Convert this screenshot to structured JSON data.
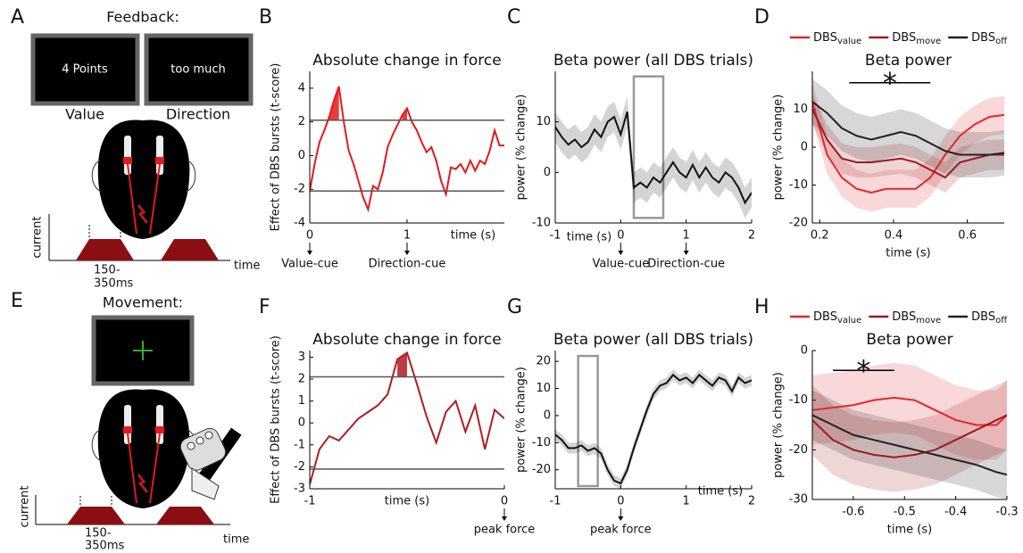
{
  "diagrams": [
    {
      "panel": "A",
      "title": "Feedback:",
      "screens": [
        "4 Points",
        "too much"
      ],
      "screen_captions": [
        "Value",
        "Direction"
      ],
      "axis_labels": [
        "current",
        "time"
      ],
      "duration": [
        "150-",
        "350ms"
      ]
    },
    {
      "panel": "E",
      "title": "Movement:",
      "axis_labels": [
        "current",
        "time"
      ],
      "duration": [
        "150-",
        "350ms"
      ]
    }
  ],
  "chart_data": [
    {
      "type": "line",
      "panel": "B",
      "title": "Absolute change in force",
      "ylabel": "Effect of DBS bursts (t-score)",
      "xlabel": "time (s)",
      "xlim": [
        0,
        2
      ],
      "xticks": [
        0,
        1
      ],
      "ylim": [
        -4,
        5
      ],
      "yticks": [
        -4,
        -2,
        0,
        2,
        4
      ],
      "hlines": [
        2.1,
        -2.1
      ],
      "x": [
        0,
        0.05,
        0.1,
        0.15,
        0.2,
        0.25,
        0.3,
        0.35,
        0.4,
        0.45,
        0.5,
        0.55,
        0.6,
        0.65,
        0.7,
        0.75,
        0.8,
        0.85,
        0.9,
        0.95,
        1,
        1.05,
        1.1,
        1.15,
        1.2,
        1.25,
        1.3,
        1.35,
        1.4,
        1.45,
        1.5,
        1.55,
        1.6,
        1.65,
        1.7,
        1.75,
        1.8,
        1.85,
        1.9,
        1.95,
        2
      ],
      "series": [
        {
          "color": "#e41a1c",
          "values": [
            -2.1,
            -0.5,
            0.8,
            1.5,
            2.3,
            3.3,
            4.1,
            2.0,
            0.3,
            -0.5,
            -1.5,
            -2.5,
            -3.2,
            -1.8,
            -2.0,
            -1.0,
            0.5,
            1.2,
            1.8,
            2.4,
            2.8,
            2.0,
            1.5,
            0.8,
            0.2,
            0.5,
            -0.3,
            -1.5,
            -2.3,
            -0.7,
            -0.8,
            -0.5,
            -1.0,
            -0.3,
            -0.9,
            -0.3,
            -0.5,
            0.3,
            1.5,
            0.6,
            0.6
          ]
        }
      ],
      "annotations": [
        {
          "label": "Value-cue",
          "x": 0
        },
        {
          "label": "Direction-cue",
          "x": 1
        }
      ]
    },
    {
      "type": "line",
      "panel": "C",
      "title": "Beta power (all DBS trials)",
      "ylabel": "power (% change)",
      "xlabel": "time (s)",
      "xlim": [
        -1,
        2
      ],
      "xticks": [
        -1,
        0,
        1,
        2
      ],
      "ylim": [
        -10,
        20
      ],
      "yticks": [
        -10,
        0,
        10
      ],
      "window": {
        "x": [
          0.2,
          0.65
        ],
        "y": [
          -9,
          19
        ]
      },
      "x": [
        -1,
        -0.9,
        -0.8,
        -0.7,
        -0.6,
        -0.5,
        -0.4,
        -0.3,
        -0.2,
        -0.1,
        0,
        0.1,
        0.2,
        0.3,
        0.4,
        0.5,
        0.6,
        0.7,
        0.8,
        0.9,
        1,
        1.1,
        1.2,
        1.3,
        1.4,
        1.5,
        1.6,
        1.7,
        1.8,
        1.9,
        2
      ],
      "series": [
        {
          "color": "#111111",
          "values": [
            9,
            7,
            5.5,
            6.5,
            5,
            6,
            8.5,
            7,
            10,
            11,
            7.5,
            12,
            -3,
            -2,
            -3,
            -1,
            -2,
            0,
            2,
            0,
            -1,
            1.5,
            -1,
            1,
            -1,
            -2,
            0,
            -1,
            -3,
            -6,
            -4
          ],
          "lower": [
            6,
            4,
            2.5,
            3.5,
            2,
            3,
            5.5,
            4,
            7,
            8,
            4.5,
            9,
            -6,
            -5,
            -6,
            -4,
            -5,
            -3,
            -1,
            -3,
            -4,
            -1.5,
            -4,
            -2,
            -4,
            -5,
            -3,
            -4,
            -6,
            -9,
            -7
          ],
          "upper": [
            12,
            10,
            8.5,
            9.5,
            8,
            9,
            11.5,
            10,
            13,
            14,
            10.5,
            15,
            0,
            1,
            0,
            2,
            1,
            3,
            5,
            3,
            2,
            4.5,
            2,
            4,
            2,
            1,
            3,
            2,
            0,
            -3,
            -1
          ]
        }
      ],
      "annotations": [
        {
          "label": "Value-cue",
          "x": 0
        },
        {
          "label": "Direction-cue",
          "x": 1
        }
      ]
    },
    {
      "type": "line",
      "panel": "D",
      "title": "Beta power",
      "ylabel": "power (% change)",
      "xlabel": "time (s)",
      "xlim": [
        0.18,
        0.7
      ],
      "xticks": [
        0.2,
        0.4,
        0.6
      ],
      "ylim": [
        -20,
        20
      ],
      "yticks": [
        -20,
        -10,
        0,
        10
      ],
      "significance": {
        "label": "*",
        "x": [
          0.28,
          0.5
        ],
        "y": 17
      },
      "x": [
        0.18,
        0.22,
        0.26,
        0.3,
        0.34,
        0.38,
        0.42,
        0.46,
        0.5,
        0.54,
        0.58,
        0.62,
        0.66,
        0.7
      ],
      "series": [
        {
          "name": "DBS",
          "subscript": "value",
          "color": "#e0282e",
          "values": [
            12,
            -2,
            -8,
            -11,
            -12,
            -11,
            -11,
            -11,
            -8,
            -2,
            3,
            6,
            8,
            8.5
          ],
          "lower": [
            7,
            -7,
            -13,
            -16,
            -17,
            -16,
            -16,
            -16,
            -13,
            -7,
            -2,
            1,
            3,
            3.5
          ],
          "upper": [
            17,
            3,
            -3,
            -6,
            -7,
            -6,
            -6,
            -6,
            -3,
            3,
            8,
            11,
            13,
            13.5
          ]
        },
        {
          "name": "DBS",
          "subscript": "move",
          "color": "#9e1b1f",
          "values": [
            10,
            2,
            -3,
            -4,
            -4,
            -3.5,
            -3,
            -4,
            -6,
            -8,
            -4,
            -3,
            -2,
            -2
          ],
          "lower": [
            6,
            -2,
            -7,
            -8,
            -8,
            -7.5,
            -7,
            -8,
            -10,
            -12,
            -8,
            -7,
            -6,
            -6
          ],
          "upper": [
            14,
            6,
            1,
            0,
            0,
            0.5,
            1,
            0,
            -2,
            -4,
            0,
            1,
            2,
            2
          ]
        },
        {
          "name": "DBS",
          "subscript": "off",
          "color": "#222222",
          "values": [
            12,
            9,
            5,
            3,
            2,
            3,
            4,
            3,
            1,
            -1,
            -2,
            -2,
            -2,
            -1.5
          ],
          "lower": [
            6,
            3,
            -1,
            -3,
            -4,
            -3,
            -2,
            -3,
            -5,
            -7,
            -8,
            -8,
            -8,
            -7.5
          ],
          "upper": [
            18,
            15,
            11,
            9,
            8,
            9,
            10,
            9,
            7,
            5,
            4,
            4,
            4,
            4.5
          ]
        }
      ]
    },
    {
      "type": "line",
      "panel": "F",
      "title": "Absolute change in force",
      "ylabel": "Effect of DBS bursts (t-score)",
      "xlabel": "time (s)",
      "xlim": [
        -1,
        0
      ],
      "xticks": [
        -1,
        0
      ],
      "ylim": [
        -3,
        3.3
      ],
      "yticks": [
        -3,
        -2,
        -1,
        0,
        1,
        2,
        3
      ],
      "hlines": [
        2.1,
        -2.1
      ],
      "x": [
        -1,
        -0.95,
        -0.9,
        -0.85,
        -0.8,
        -0.75,
        -0.7,
        -0.65,
        -0.6,
        -0.55,
        -0.5,
        -0.45,
        -0.4,
        -0.35,
        -0.3,
        -0.25,
        -0.2,
        -0.15,
        -0.1,
        -0.05,
        0
      ],
      "series": [
        {
          "color": "#b01c22",
          "values": [
            -2.8,
            -1.2,
            -0.6,
            -0.8,
            -0.3,
            0.2,
            0.5,
            0.8,
            1.3,
            2.9,
            3.2,
            1.8,
            0.3,
            -0.9,
            0.5,
            1.0,
            -0.4,
            0.8,
            -1.2,
            0.6,
            0.2
          ]
        }
      ],
      "annotations": [
        {
          "label": "peak force",
          "x": 0
        }
      ]
    },
    {
      "type": "line",
      "panel": "G",
      "title": "Beta power (all DBS trials)",
      "ylabel": "power (% change)",
      "xlabel": "time (s)",
      "xlim": [
        -1,
        2
      ],
      "xticks": [
        -1,
        0,
        1,
        2
      ],
      "ylim": [
        -27,
        24
      ],
      "yticks": [
        -20,
        -10,
        0,
        10,
        20
      ],
      "window": {
        "x": [
          -0.65,
          -0.35
        ],
        "y": [
          -26,
          22
        ]
      },
      "x": [
        -1,
        -0.9,
        -0.8,
        -0.7,
        -0.6,
        -0.5,
        -0.4,
        -0.3,
        -0.2,
        -0.1,
        0,
        0.1,
        0.2,
        0.3,
        0.4,
        0.5,
        0.6,
        0.7,
        0.8,
        0.9,
        1,
        1.1,
        1.2,
        1.3,
        1.4,
        1.5,
        1.6,
        1.7,
        1.8,
        1.9,
        2
      ],
      "series": [
        {
          "color": "#111111",
          "values": [
            -7,
            -9,
            -12,
            -12,
            -11,
            -13,
            -12,
            -14,
            -20,
            -24,
            -25,
            -20,
            -12,
            -5,
            2,
            8,
            11,
            12,
            15,
            13,
            14,
            12,
            15,
            13,
            11,
            14,
            13,
            9,
            14,
            12,
            13
          ],
          "lower": [
            -9,
            -11,
            -14,
            -14,
            -13,
            -15,
            -14,
            -16,
            -22,
            -26,
            -27,
            -22,
            -14,
            -7,
            0,
            6,
            9,
            10,
            13,
            11,
            12,
            10,
            13,
            11,
            9,
            12,
            11,
            7,
            12,
            10,
            11
          ],
          "upper": [
            -5,
            -7,
            -10,
            -10,
            -9,
            -11,
            -10,
            -12,
            -18,
            -22,
            -23,
            -18,
            -10,
            -3,
            4,
            10,
            13,
            14,
            17,
            15,
            16,
            14,
            17,
            15,
            13,
            16,
            15,
            11,
            16,
            14,
            15
          ]
        }
      ],
      "annotations": [
        {
          "label": "peak force",
          "x": 0
        }
      ]
    },
    {
      "type": "line",
      "panel": "H",
      "title": "Beta power",
      "ylabel": "power (% change)",
      "xlabel": "time (s)",
      "xlim": [
        -0.68,
        -0.3
      ],
      "xticks": [
        -0.6,
        -0.5,
        -0.4,
        -0.3
      ],
      "ylim": [
        -30,
        0
      ],
      "yticks": [
        -30,
        -20,
        -10,
        0
      ],
      "significance": {
        "label": "*",
        "x": [
          -0.64,
          -0.52
        ],
        "y": -4
      },
      "x": [
        -0.68,
        -0.64,
        -0.6,
        -0.56,
        -0.52,
        -0.48,
        -0.44,
        -0.4,
        -0.36,
        -0.32,
        -0.3
      ],
      "series": [
        {
          "name": "DBS",
          "subscript": "value",
          "color": "#e0282e",
          "values": [
            -12,
            -11.5,
            -11,
            -10,
            -9.5,
            -10,
            -12,
            -14,
            -15,
            -15,
            -13
          ],
          "lower": [
            -19,
            -18.5,
            -18,
            -17,
            -16.5,
            -17,
            -19,
            -21,
            -22,
            -22,
            -20
          ],
          "upper": [
            -5,
            -4.5,
            -4,
            -3,
            -2.5,
            -3,
            -5,
            -7,
            -8,
            -8,
            -6
          ]
        },
        {
          "name": "DBS",
          "subscript": "move",
          "color": "#9e1b1f",
          "values": [
            -14,
            -18,
            -20,
            -21,
            -21.5,
            -21,
            -20,
            -18,
            -16,
            -14,
            -13
          ],
          "lower": [
            -21,
            -25,
            -27,
            -28,
            -28.5,
            -28,
            -27,
            -25,
            -23,
            -21,
            -20
          ],
          "upper": [
            -7,
            -11,
            -13,
            -14,
            -14.5,
            -14,
            -13,
            -11,
            -9,
            -7,
            -6
          ]
        },
        {
          "name": "DBS",
          "subscript": "off",
          "color": "#222222",
          "values": [
            -13,
            -15,
            -17,
            -18,
            -19,
            -20,
            -21,
            -22,
            -23,
            -24.5,
            -25
          ],
          "lower": [
            -18,
            -20,
            -22,
            -23,
            -24,
            -25,
            -26,
            -27,
            -28,
            -29.5,
            -30
          ],
          "upper": [
            -8,
            -10,
            -12,
            -13,
            -14,
            -15,
            -16,
            -17,
            -18,
            -19.5,
            -20
          ]
        }
      ]
    }
  ]
}
